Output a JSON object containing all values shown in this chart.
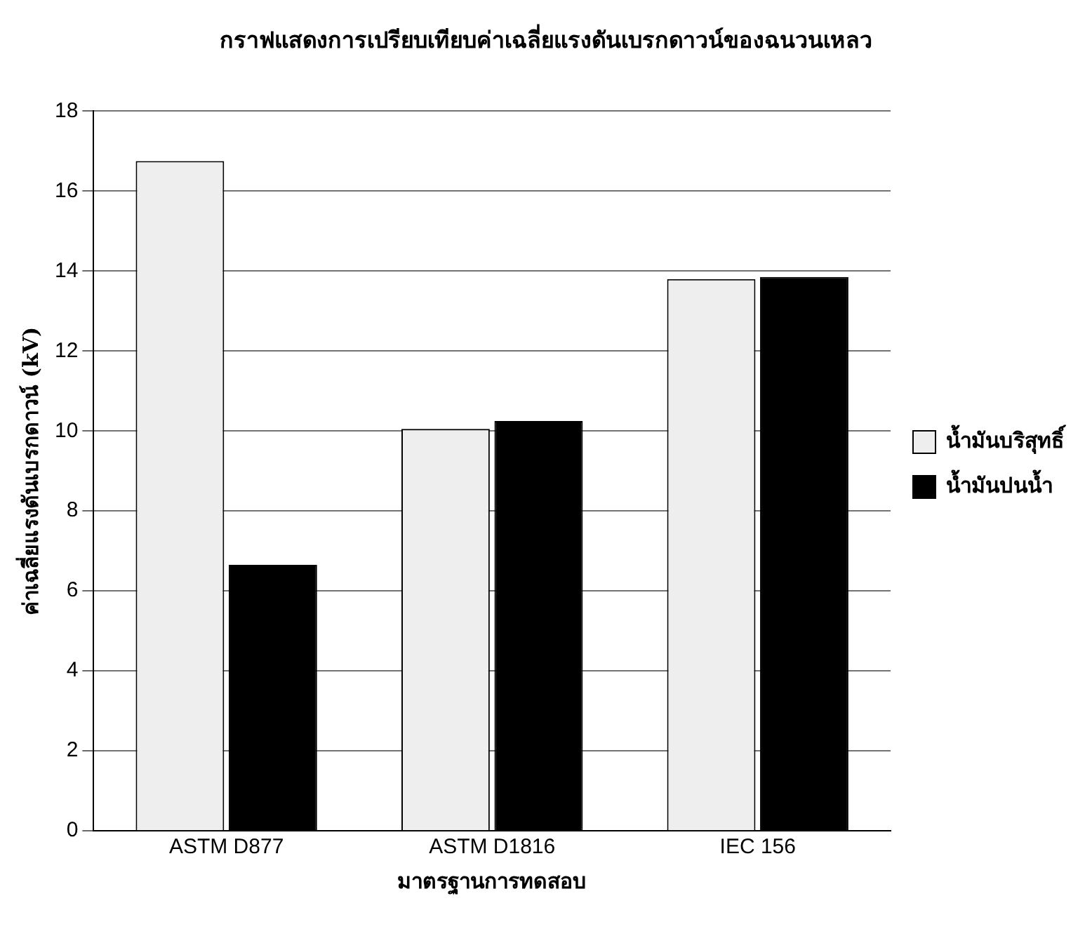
{
  "chart_data": {
    "type": "bar",
    "title": "กราฟแสดงการเปรียบเทียบค่าเฉลี่ยแรงดันเบรกดาวน์ของฉนวนเหลว",
    "xlabel": "มาตรฐานการทดสอบ",
    "ylabel": "ค่าเฉลี่ยแรงดันเบรกดาวน์ (kV)",
    "categories": [
      "ASTM D877",
      "ASTM D1816",
      "IEC 156"
    ],
    "series": [
      {
        "name": "น้ำมันบริสุทธิ์",
        "color": "#eeeeee",
        "values": [
          16.75,
          10.05,
          13.8
        ]
      },
      {
        "name": "น้ำมันปนน้ำ",
        "color": "#000000",
        "values": [
          6.65,
          10.25,
          13.85
        ]
      }
    ],
    "ylim": [
      0,
      18
    ],
    "yticks": [
      0,
      2,
      4,
      6,
      8,
      10,
      12,
      14,
      16,
      18
    ],
    "grid": "y",
    "legend": "right"
  }
}
